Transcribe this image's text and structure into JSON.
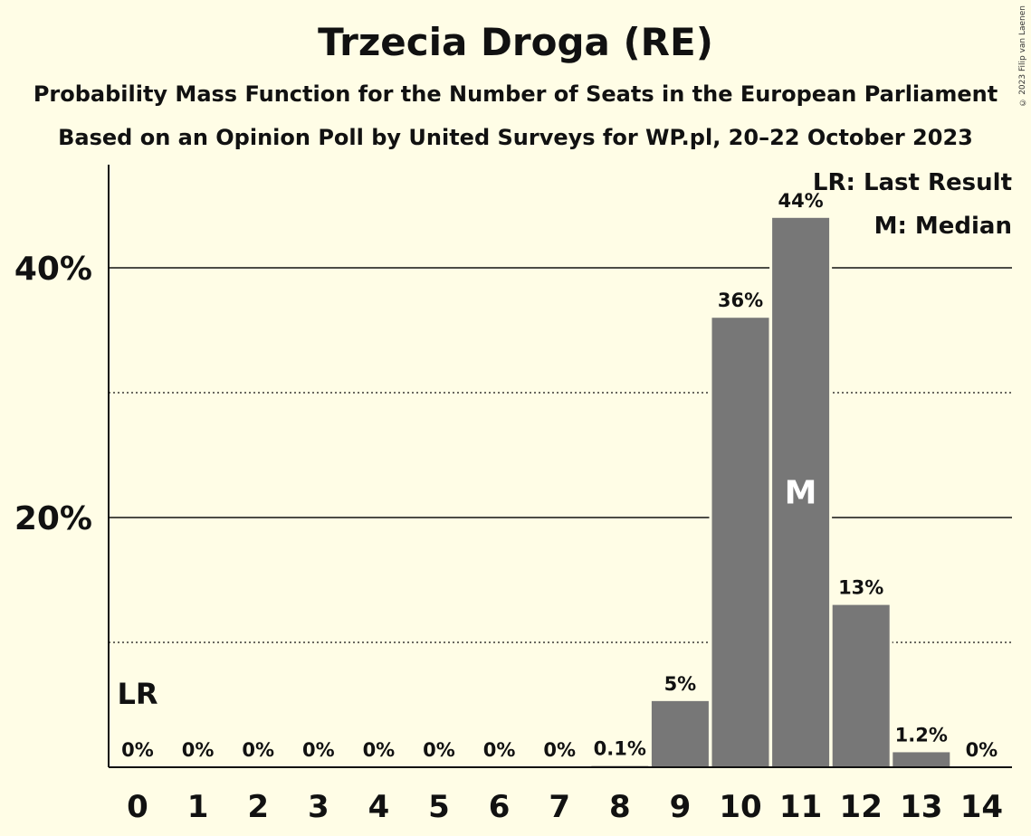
{
  "chart_data": {
    "type": "bar",
    "title": "Trzecia Droga (RE)",
    "subtitle_1": "Probability Mass Function for the Number of Seats in the European Parliament",
    "subtitle_2": "Based on an Opinion Poll by United Surveys for WP.pl, 20–22 October 2023",
    "copyright": "© 2023 Filip van Laenen",
    "categories": [
      "0",
      "1",
      "2",
      "3",
      "4",
      "5",
      "6",
      "7",
      "8",
      "9",
      "10",
      "11",
      "12",
      "13",
      "14"
    ],
    "values": [
      0,
      0,
      0,
      0,
      0,
      0,
      0,
      0,
      0.1,
      5.3,
      36,
      44,
      13,
      1.2,
      0
    ],
    "value_labels": [
      "0%",
      "0%",
      "0%",
      "0%",
      "0%",
      "0%",
      "0%",
      "0%",
      "0.1%",
      "5%",
      "36%",
      "44%",
      "13%",
      "1.2%",
      "0%"
    ],
    "ylim": [
      0,
      48
    ],
    "y_ticks": [
      {
        "value": 20,
        "label": "20%"
      },
      {
        "value": 40,
        "label": "40%"
      }
    ],
    "y_minor_gridlines": [
      10,
      30
    ],
    "last_result_index": 0,
    "last_result_marker": "LR",
    "median_index": 11,
    "median_marker": "M",
    "legend": [
      "LR: Last Result",
      "M: Median"
    ],
    "legend_position": "top-right",
    "bar_color": "#777777"
  }
}
